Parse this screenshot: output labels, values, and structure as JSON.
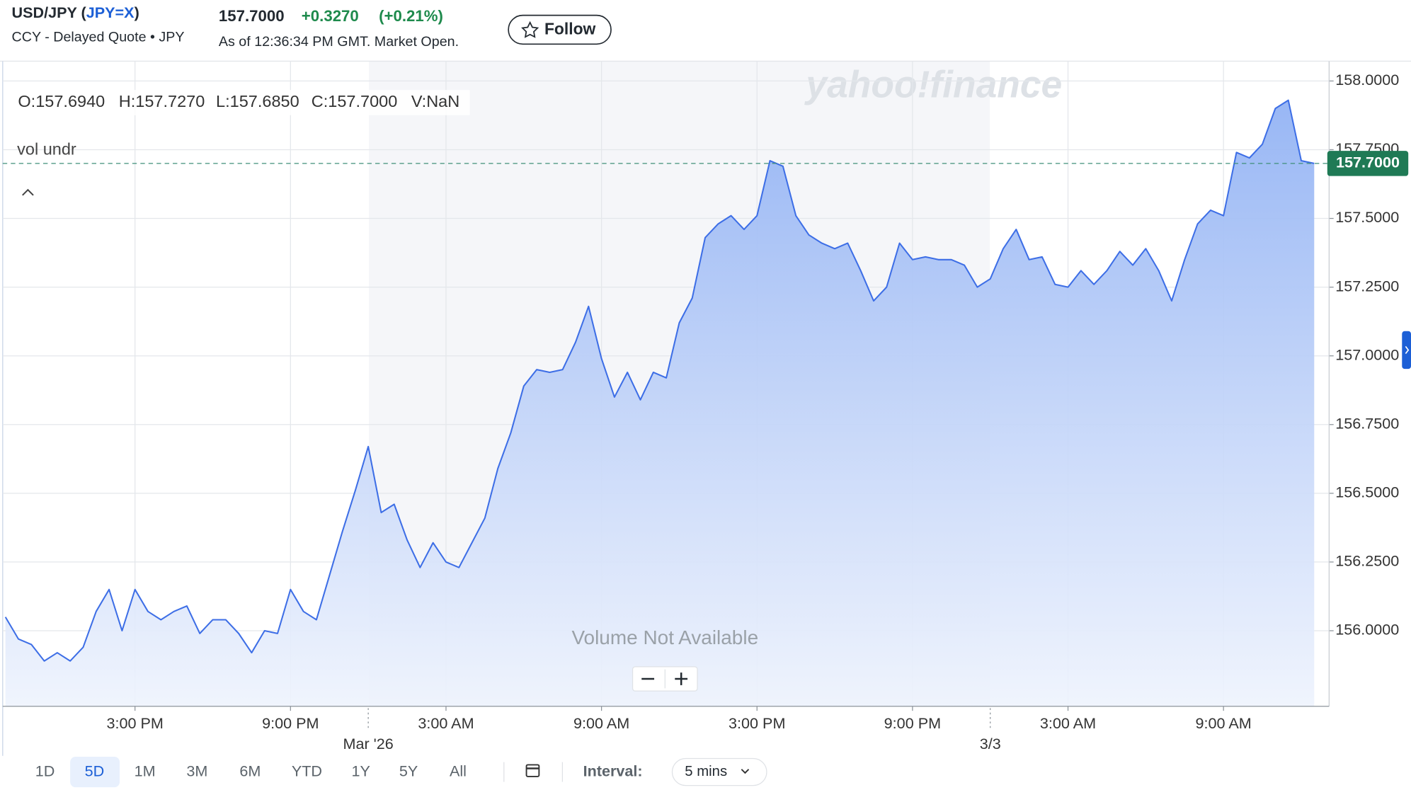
{
  "header": {
    "title": [
      "USD/JPY (",
      "JPY=X",
      ")"
    ],
    "subtitle": "CCY - Delayed Quote • JPY",
    "price": "157.7000",
    "change": "+0.3270",
    "change_pct": "(+0.21%)",
    "status": "As of 12:36:34 PM GMT. Market Open.",
    "follow": "Follow"
  },
  "chart_data": {
    "type": "line",
    "watermark": "yahoo!finance",
    "ohlc": [
      "O:157.6940",
      "H:157.7270",
      "L:157.6850",
      "C:157.7000",
      "V:NaN"
    ],
    "indicator": "vol undr",
    "note": "Volume Not Available",
    "color": "#3d6ee6",
    "values": [
      156.05,
      155.97,
      155.95,
      155.89,
      155.92,
      155.89,
      155.94,
      156.07,
      156.15,
      156.0,
      156.15,
      156.07,
      156.04,
      156.07,
      156.09,
      155.99,
      156.04,
      156.04,
      155.99,
      155.92,
      156.0,
      155.99,
      156.15,
      156.07,
      156.04,
      156.2,
      156.36,
      156.51,
      156.67,
      156.43,
      156.46,
      156.33,
      156.23,
      156.32,
      156.25,
      156.23,
      156.32,
      156.41,
      156.59,
      156.72,
      156.89,
      156.95,
      156.94,
      156.95,
      157.05,
      157.18,
      156.99,
      156.85,
      156.94,
      156.84,
      156.94,
      156.92,
      157.12,
      157.21,
      157.43,
      157.48,
      157.51,
      157.46,
      157.51,
      157.71,
      157.69,
      157.51,
      157.44,
      157.41,
      157.39,
      157.41,
      157.31,
      157.2,
      157.25,
      157.41,
      157.35,
      157.36,
      157.35,
      157.35,
      157.33,
      157.25,
      157.28,
      157.39,
      157.46,
      157.35,
      157.36,
      157.26,
      157.25,
      157.31,
      157.26,
      157.31,
      157.38,
      157.33,
      157.39,
      157.31,
      157.2,
      157.35,
      157.48,
      157.53,
      157.51,
      157.74,
      157.72,
      157.77,
      157.9,
      157.93,
      157.71,
      157.7
    ],
    "xlim": [
      -0.21,
      102.15
    ],
    "xticks": [
      {
        "value": 10,
        "label": "3:00 PM"
      },
      {
        "value": 22,
        "label": "9:00 PM"
      },
      {
        "value": 34,
        "label": "3:00 AM"
      },
      {
        "value": 46,
        "label": "9:00 AM"
      },
      {
        "value": 58,
        "label": "3:00 PM"
      },
      {
        "value": 70,
        "label": "9:00 PM"
      },
      {
        "value": 82,
        "label": "3:00 AM"
      },
      {
        "value": 94,
        "label": "9:00 AM"
      }
    ],
    "xdateticks": [
      {
        "value": 28,
        "label": "Mar '26"
      },
      {
        "value": 76,
        "label": "3/3"
      }
    ],
    "ylim": [
      155.725,
      158.072
    ],
    "yticks": [
      {
        "value": 156,
        "label": "156.0000"
      },
      {
        "value": 156.25,
        "label": "156.2500"
      },
      {
        "value": 156.5,
        "label": "156.5000"
      },
      {
        "value": 156.75,
        "label": "156.7500"
      },
      {
        "value": 157,
        "label": "157.0000"
      },
      {
        "value": 157.25,
        "label": "157.2500"
      },
      {
        "value": 157.5,
        "label": "157.5000"
      },
      {
        "value": 157.75,
        "label": "157.7500"
      },
      {
        "value": 158,
        "label": "158.0000"
      }
    ],
    "current_price": {
      "value": 157.7,
      "label": "157.7000"
    },
    "grid": true
  },
  "controls": {
    "ranges": [
      "1D",
      "5D",
      "1M",
      "3M",
      "6M",
      "YTD",
      "1Y",
      "5Y",
      "All"
    ],
    "interval_label": "Interval:",
    "interval": "5 mins"
  }
}
